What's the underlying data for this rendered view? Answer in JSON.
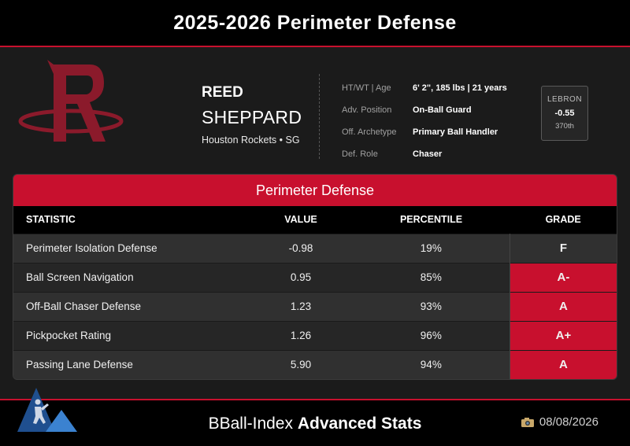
{
  "header": {
    "title": "2025-2026 Perimeter Defense"
  },
  "player": {
    "first_name": "REED",
    "last_name": "SHEPPARD",
    "team_position": "Houston Rockets • SG",
    "info": [
      {
        "label": "HT/WT | Age",
        "value": "6' 2\", 185 lbs | 21 years"
      },
      {
        "label": "Adv. Position",
        "value": "On-Ball Guard"
      },
      {
        "label": "Off. Archetype",
        "value": "Primary Ball Handler"
      },
      {
        "label": "Def. Role",
        "value": "Chaser"
      }
    ],
    "lebron": {
      "label": "LEBRON",
      "value": "-0.55",
      "rank": "370th"
    }
  },
  "table": {
    "title": "Perimeter Defense",
    "columns": [
      "STATISTIC",
      "VALUE",
      "PERCENTILE",
      "GRADE"
    ],
    "rows": [
      {
        "stat": "Perimeter Isolation Defense",
        "value": "-0.98",
        "percentile": "19%",
        "grade": "F"
      },
      {
        "stat": "Ball Screen Navigation",
        "value": "0.95",
        "percentile": "85%",
        "grade": "A-"
      },
      {
        "stat": "Off-Ball Chaser Defense",
        "value": "1.23",
        "percentile": "93%",
        "grade": "A"
      },
      {
        "stat": "Pickpocket Rating",
        "value": "1.26",
        "percentile": "96%",
        "grade": "A+"
      },
      {
        "stat": "Passing Lane Defense",
        "value": "5.90",
        "percentile": "94%",
        "grade": "A"
      }
    ]
  },
  "footer": {
    "brand_light": "BBall-Index",
    "brand_bold": "Advanced Stats",
    "date": "08/08/2026"
  },
  "colors": {
    "accent": "#c8102e",
    "logo_red": "#8b1a2b",
    "bg": "#1b1b1b",
    "footer_logo_blue": "#1f4f8f"
  },
  "icons": {
    "team_logo": "rockets-logo-icon",
    "brand_logo": "bball-index-logo-icon",
    "date_icon": "camera-icon"
  }
}
